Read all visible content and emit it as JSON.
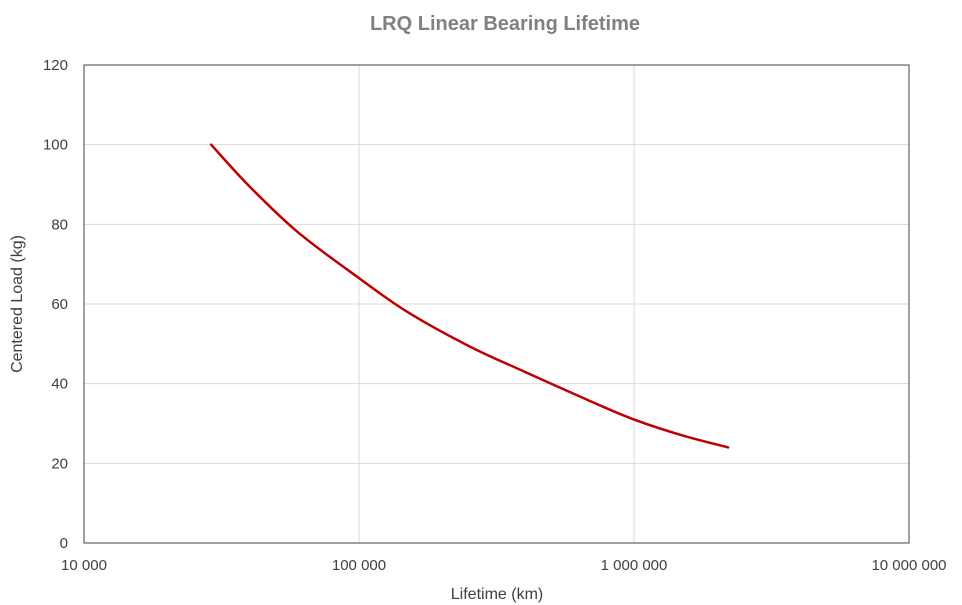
{
  "chart_data": {
    "type": "line",
    "title": "LRQ Linear Bearing Lifetime",
    "xlabel": "Lifetime (km)",
    "ylabel": "Centered Load (kg)",
    "x_scale": "log",
    "xlim": [
      10000,
      10000000
    ],
    "ylim": [
      0,
      120
    ],
    "x_ticks": [
      {
        "value": 10000,
        "label": "10 000"
      },
      {
        "value": 100000,
        "label": "100 000"
      },
      {
        "value": 1000000,
        "label": "1 000 000"
      },
      {
        "value": 10000000,
        "label": "10 000 000"
      }
    ],
    "y_ticks": [
      {
        "value": 0,
        "label": "0"
      },
      {
        "value": 20,
        "label": "20"
      },
      {
        "value": 40,
        "label": "40"
      },
      {
        "value": 60,
        "label": "60"
      },
      {
        "value": 80,
        "label": "80"
      },
      {
        "value": 100,
        "label": "100"
      },
      {
        "value": 120,
        "label": "120"
      }
    ],
    "grid": true,
    "series": [
      {
        "color": "#c00000",
        "x": [
          29000,
          40000,
          60000,
          100000,
          150000,
          250000,
          400000,
          700000,
          1000000,
          1500000,
          2200000
        ],
        "y": [
          100,
          89.5,
          78,
          66.5,
          58,
          49.5,
          43,
          35.5,
          31,
          27,
          24
        ]
      }
    ]
  },
  "colors": {
    "title": "#808080",
    "text": "#404040",
    "grid": "#d9d9d9",
    "axis": "#404040"
  }
}
